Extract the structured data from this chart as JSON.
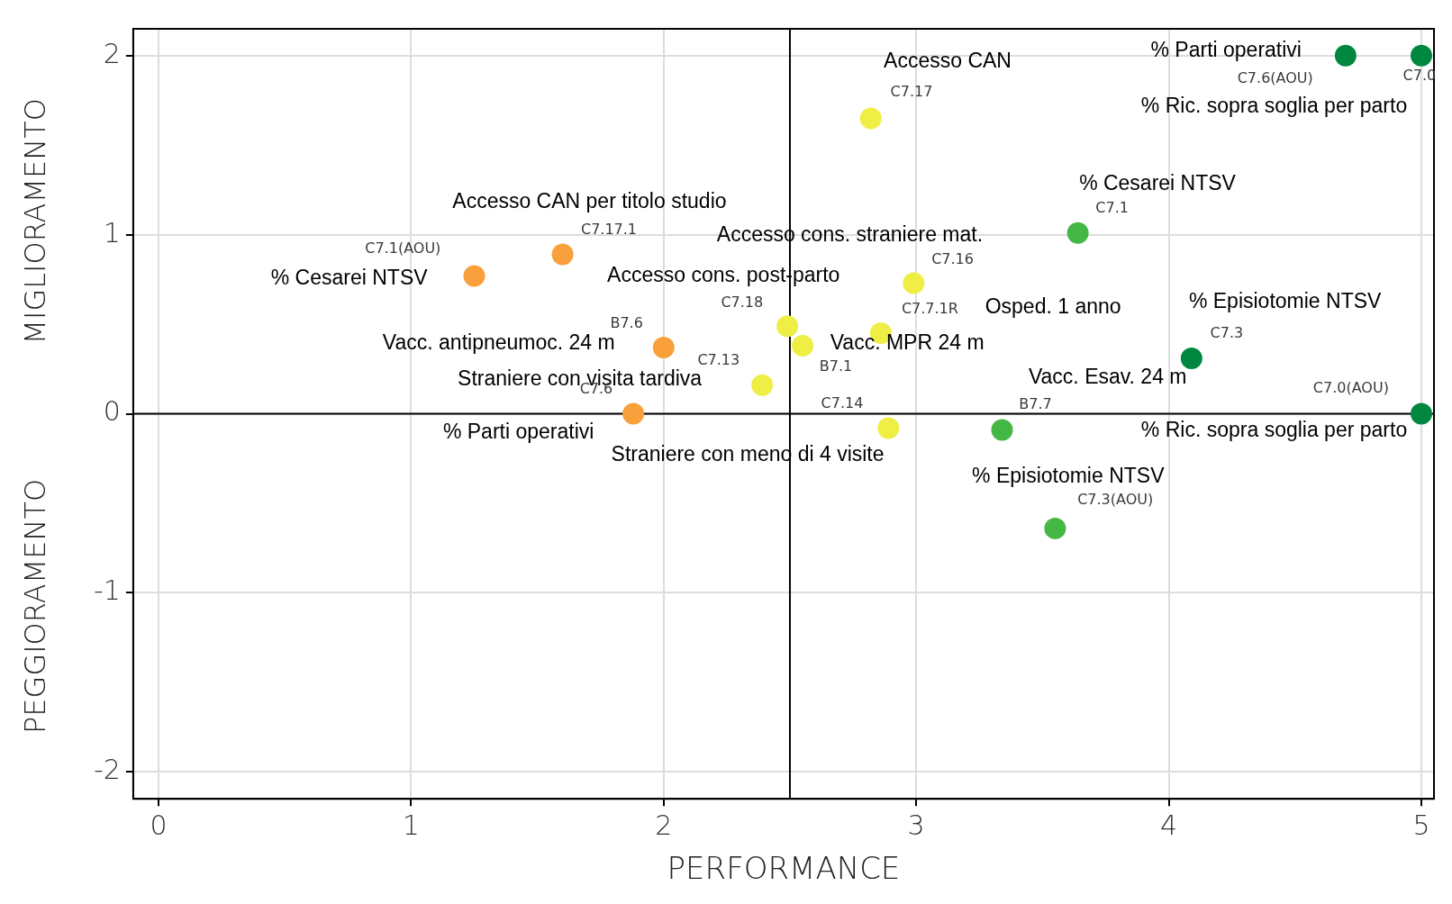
{
  "chart_data": {
    "type": "scatter",
    "xlabel": "PERFORMANCE",
    "ylabel": "MIGLIORAMENTO",
    "xlim": [
      -0.1,
      5.05
    ],
    "ylim": [
      -2.15,
      2.15
    ],
    "xticks": [
      0,
      1,
      2,
      3,
      4,
      5
    ],
    "yticks": [
      -2,
      -1,
      0,
      1,
      2
    ],
    "grid": true,
    "legend": false,
    "marker": "circle",
    "series": [
      {
        "x": [
          4.7,
          5.0,
          2.82,
          3.64,
          1.6,
          1.25,
          2.99,
          2.49,
          2.86,
          2.55,
          2.0,
          4.09,
          2.39,
          1.88,
          5.0,
          2.89,
          3.34,
          3.55
        ],
        "values": [
          2.0,
          2.0,
          1.65,
          1.01,
          0.89,
          0.77,
          0.73,
          0.49,
          0.45,
          0.38,
          0.37,
          0.31,
          0.16,
          0.0,
          0.0,
          -0.08,
          -0.09,
          -0.64
        ],
        "colors": [
          "#00873f",
          "#00873f",
          "#eeee44",
          "#44b744",
          "#f9a03c",
          "#f9a03c",
          "#eeee44",
          "#eeee44",
          "#eeee44",
          "#eeee44",
          "#f9a03c",
          "#00873f",
          "#eeee44",
          "#f9a03c",
          "#00873f",
          "#eeee44",
          "#44b744",
          "#44b744"
        ]
      }
    ],
    "ref_lines": [
      {
        "axis": "x",
        "value": 2.5,
        "color": "#000000"
      },
      {
        "axis": "y",
        "value": 0,
        "color": "#000000"
      }
    ],
    "annotations": [
      {
        "text": "C7.6(AOU)",
        "x": 4.7,
        "y": 2.0
      },
      {
        "text": "% Parti operativi",
        "x": 4.7,
        "y": 2.0
      },
      {
        "text": "C7.0",
        "x": 5.0,
        "y": 2.0
      },
      {
        "text": "% Ric. sopra soglia per parto",
        "x": 5.0,
        "y": 2.0
      },
      {
        "text": "C7.17",
        "x": 2.82,
        "y": 1.65
      },
      {
        "text": "Accesso CAN",
        "x": 2.82,
        "y": 1.65
      },
      {
        "text": "C7.1",
        "x": 3.64,
        "y": 1.01
      },
      {
        "text": "% Cesarei NTSV",
        "x": 3.64,
        "y": 1.01
      },
      {
        "text": "C7.17.1",
        "x": 1.6,
        "y": 0.89
      },
      {
        "text": "Accesso CAN per titolo studio",
        "x": 1.6,
        "y": 0.89
      },
      {
        "text": "C7.1(AOU)",
        "x": 1.25,
        "y": 0.77
      },
      {
        "text": "% Cesarei NTSV",
        "x": 1.25,
        "y": 0.77
      },
      {
        "text": "C7.16",
        "x": 2.99,
        "y": 0.73
      },
      {
        "text": "Accesso cons. straniere mat.",
        "x": 2.99,
        "y": 0.73
      },
      {
        "text": "C7.18",
        "x": 2.49,
        "y": 0.49
      },
      {
        "text": "Accesso cons. post-parto",
        "x": 2.49,
        "y": 0.49
      },
      {
        "text": "C7.7.1R",
        "x": 2.86,
        "y": 0.45
      },
      "Osped. 1 anno",
      {
        "text": "B7.1",
        "x": 2.55,
        "y": 0.38
      },
      {
        "text": "Vacc. MPR 24 m",
        "x": 2.55,
        "y": 0.38
      },
      {
        "text": "B7.6",
        "x": 2.0,
        "y": 0.37
      },
      {
        "text": "Vacc. antipneumoc. 24 m",
        "x": 2.0,
        "y": 0.37
      },
      {
        "text": "C7.3",
        "x": 4.09,
        "y": 0.31
      },
      {
        "text": "% Episiotomie NTSV",
        "x": 4.09,
        "y": 0.31
      },
      {
        "text": "C7.13",
        "x": 2.39,
        "y": 0.16
      },
      {
        "text": "Straniere con visita tardiva",
        "x": 2.39,
        "y": 0.16
      },
      {
        "text": "C7.6",
        "x": 1.88,
        "y": 0.0
      },
      {
        "text": "% Parti operativi",
        "x": 1.88,
        "y": 0.0
      },
      {
        "text": "C7.0(AOU)",
        "x": 5.0,
        "y": 0.0
      },
      {
        "text": "% Ric. sopra soglia per parto",
        "x": 5.0,
        "y": 0.0
      },
      {
        "text": "C7.14",
        "x": 2.89,
        "y": -0.08
      },
      {
        "text": "Straniere con meno di 4 visite",
        "x": 2.89,
        "y": -0.08
      },
      {
        "text": "B7.7",
        "x": 3.34,
        "y": -0.09
      },
      {
        "text": "Vacc. Esav. 24 m",
        "x": 3.34,
        "y": -0.09
      },
      {
        "text": "C7.3(AOU)",
        "x": 3.55,
        "y": -0.64
      },
      {
        "text": "% Episiotomie NTSV",
        "x": 3.55,
        "y": -0.64
      },
      "PEGGIORAMENTO"
    ]
  }
}
